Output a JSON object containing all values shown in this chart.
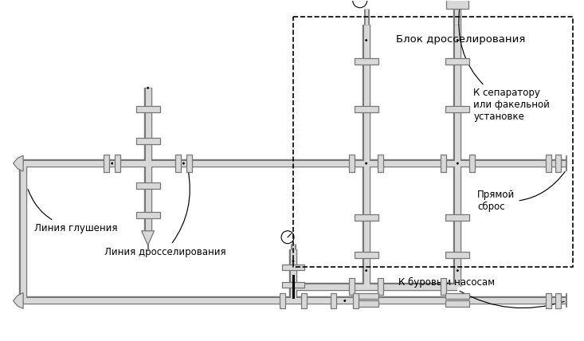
{
  "bg_color": "#ffffff",
  "pipe_fill": "#d8d8d8",
  "pipe_edge": "#777777",
  "valve_fill": "#ffffff",
  "valve_edge": "#111111",
  "box_dash_color": "#111111",
  "text_color": "#111111",
  "label_block": "Блок дросселирования",
  "label_glush": "Линия глушения",
  "label_dross": "Линия дросселирования",
  "label_sep": "К сепаратору\nили факельной\nустановке",
  "label_pryam": "Прямой\nсброс",
  "label_bur": "К буровым насосам",
  "font_size": 8.5,
  "plw": 5.0,
  "vlw": 1.6,
  "vr": 0.03
}
